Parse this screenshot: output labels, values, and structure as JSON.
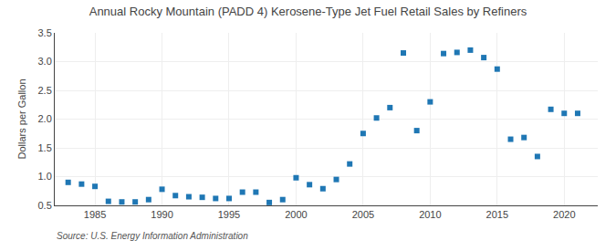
{
  "chart_data": {
    "type": "scatter",
    "title": "Annual Rocky Mountain (PADD 4) Kerosene-Type Jet Fuel Retail Sales by Refiners",
    "ylabel": "Dollars per Gallon",
    "annotations": [
      "Source: U.S. Energy Information Administration"
    ],
    "marker": "square",
    "grid": true,
    "xlim": [
      1982,
      2022.5
    ],
    "xticks": [
      1985,
      1990,
      1995,
      2000,
      2005,
      2010,
      2015,
      2020
    ],
    "ylim": [
      0.5,
      3.5
    ],
    "yticks": [
      0.5,
      {
        "value": 1,
        "label": "1.0"
      },
      1.5,
      {
        "value": 2,
        "label": "2.0"
      },
      2.5,
      {
        "value": 3,
        "label": "3.0"
      },
      3.5
    ],
    "x": [
      1983,
      1984,
      1985,
      1986,
      1987,
      1988,
      1989,
      1990,
      1991,
      1992,
      1993,
      1994,
      1995,
      1996,
      1997,
      1998,
      1999,
      2000,
      2001,
      2002,
      2003,
      2004,
      2005,
      2006,
      2007,
      2008,
      2009,
      2010,
      2011,
      2012,
      2013,
      2014,
      2015,
      2016,
      2017,
      2018,
      2019,
      2020,
      2021
    ],
    "values": [
      0.9,
      0.87,
      0.83,
      0.57,
      0.56,
      0.56,
      0.6,
      0.78,
      0.67,
      0.65,
      0.64,
      0.62,
      0.62,
      0.73,
      0.73,
      0.55,
      0.6,
      0.98,
      0.86,
      0.79,
      0.95,
      1.22,
      1.75,
      2.02,
      2.2,
      3.15,
      1.8,
      2.3,
      3.14,
      3.16,
      3.2,
      3.07,
      2.87,
      1.65,
      1.68,
      1.35,
      2.17,
      2.1,
      2.1
    ]
  }
}
